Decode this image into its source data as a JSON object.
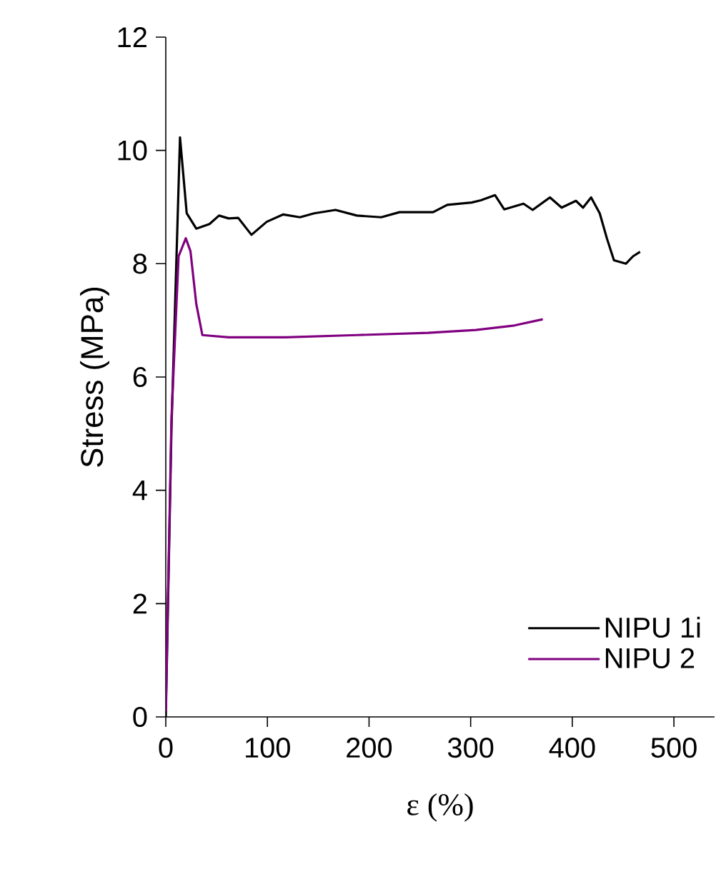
{
  "chart_data": {
    "type": "line",
    "xlabel": "ε (%)",
    "ylabel": "Stress (MPa)",
    "xlim": [
      0,
      540
    ],
    "ylim": [
      0,
      12
    ],
    "xticks": [
      0,
      100,
      200,
      300,
      400,
      500
    ],
    "yticks": [
      0,
      2,
      4,
      6,
      8,
      10,
      12
    ],
    "grid": false,
    "legend": "bottom right",
    "marker": "none",
    "line_style": "solid",
    "series": [
      {
        "name": "NIPU 1i",
        "color": "#000000",
        "x": [
          0,
          5.6,
          14,
          20.6,
          30,
          43,
          52.4,
          61.8,
          71.2,
          84.3,
          99.3,
          115.6,
          132,
          146,
          167,
          188,
          212,
          230,
          263,
          277,
          301,
          310,
          324,
          333,
          352,
          361,
          378,
          389.5,
          403.6,
          410.6,
          418.5,
          427,
          434,
          441,
          452.7,
          459.7,
          466.7
        ],
        "values": [
          0,
          5.1,
          10.23,
          8.89,
          8.62,
          8.7,
          8.85,
          8.8,
          8.81,
          8.51,
          8.74,
          8.87,
          8.82,
          8.89,
          8.95,
          8.85,
          8.82,
          8.91,
          8.91,
          9.04,
          9.08,
          9.12,
          9.21,
          8.96,
          9.06,
          8.95,
          9.17,
          8.99,
          9.11,
          8.99,
          9.17,
          8.89,
          8.45,
          8.06,
          8.0,
          8.13,
          8.21
        ]
      },
      {
        "name": "NIPU 2",
        "color": "#800080",
        "x": [
          0,
          5.6,
          12.6,
          19.7,
          24.3,
          30,
          36,
          61.8,
          118,
          188,
          258,
          305,
          343,
          371
        ],
        "values": [
          0.1,
          5.27,
          8.13,
          8.45,
          8.22,
          7.29,
          6.74,
          6.7,
          6.7,
          6.74,
          6.78,
          6.83,
          6.91,
          7.02
        ]
      }
    ]
  }
}
